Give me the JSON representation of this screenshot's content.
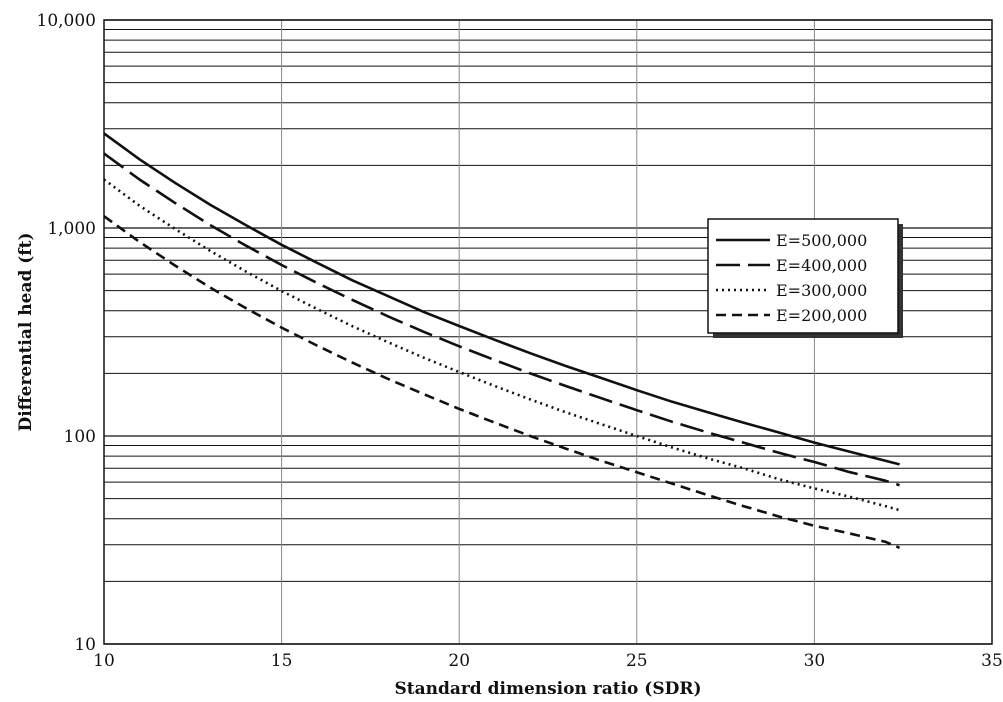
{
  "chart_data": {
    "type": "line",
    "title": "",
    "xlabel": "Standard dimension ratio (SDR)",
    "ylabel": "Differential head (ft)",
    "x_scale": "linear",
    "y_scale": "log",
    "xlim": [
      10,
      35
    ],
    "ylim": [
      10,
      10000
    ],
    "x_ticks": [
      10,
      15,
      20,
      25,
      30,
      35
    ],
    "x_tick_labels": [
      "10",
      "15",
      "20",
      "25",
      "30",
      "35"
    ],
    "y_ticks": [
      10,
      100,
      1000,
      10000
    ],
    "y_tick_labels": [
      "10",
      "100",
      "1,000",
      "10,000"
    ],
    "grid": true,
    "legend_position": "right",
    "series": [
      {
        "name": "E=500,000",
        "dash": "solid",
        "x": [
          10,
          11,
          12,
          13,
          14,
          15,
          16,
          17,
          18,
          19,
          20,
          21,
          22,
          23,
          24,
          25,
          26,
          27,
          28,
          29,
          30,
          31,
          32,
          32.4
        ],
        "y": [
          2850,
          2140,
          1650,
          1290,
          1030,
          830,
          680,
          560,
          470,
          395,
          338,
          290,
          250,
          217,
          190,
          166,
          146,
          130,
          116,
          104,
          93,
          84,
          76,
          73
        ]
      },
      {
        "name": "E=400,000",
        "dash": "long-dash",
        "x": [
          10,
          11,
          12,
          13,
          14,
          15,
          16,
          17,
          18,
          19,
          20,
          21,
          22,
          23,
          24,
          25,
          26,
          27,
          28,
          29,
          30,
          31,
          32,
          32.4
        ],
        "y": [
          2280,
          1710,
          1320,
          1030,
          822,
          664,
          544,
          450,
          376,
          317,
          270,
          232,
          200,
          174,
          152,
          133,
          117,
          104,
          93,
          83,
          75,
          67,
          61,
          58
        ]
      },
      {
        "name": "E=300,000",
        "dash": "dotted",
        "x": [
          10,
          11,
          12,
          13,
          14,
          15,
          16,
          17,
          18,
          19,
          20,
          21,
          22,
          23,
          24,
          25,
          26,
          27,
          28,
          29,
          30,
          31,
          32,
          32.4
        ],
        "y": [
          1710,
          1280,
          990,
          774,
          617,
          498,
          408,
          337,
          282,
          238,
          203,
          174,
          150,
          130,
          114,
          100,
          88,
          78,
          70,
          62,
          56,
          51,
          46,
          44
        ]
      },
      {
        "name": "E=200,000",
        "dash": "dashed",
        "x": [
          10,
          11,
          12,
          13,
          14,
          15,
          16,
          17,
          18,
          19,
          20,
          21,
          22,
          23,
          24,
          25,
          26,
          27,
          28,
          29,
          30,
          31,
          32,
          32.4
        ],
        "y": [
          1140,
          857,
          660,
          516,
          411,
          332,
          272,
          225,
          188,
          159,
          135,
          116,
          100,
          87,
          76,
          67,
          59,
          52,
          46,
          41,
          37,
          34,
          31,
          29
        ]
      }
    ]
  }
}
